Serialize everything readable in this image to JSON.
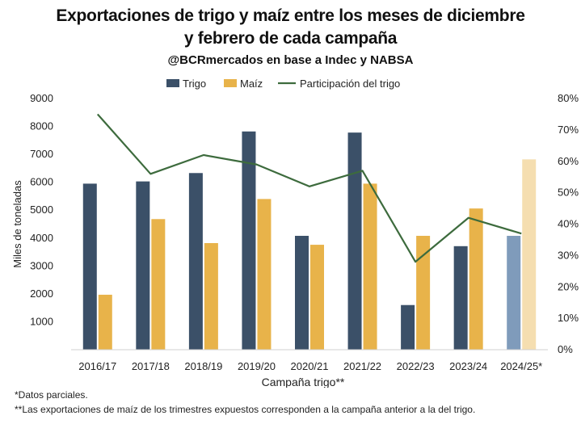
{
  "chart_data": {
    "type": "bar",
    "title": "Exportaciones de trigo y maíz entre los meses de diciembre",
    "title_line2": "y febrero de cada campaña",
    "subtitle": "@BCRmercados en base a Indec y NABSA",
    "xlabel": "Campaña trigo**",
    "ylabel": "Miles de toneladas",
    "ylim": [
      0,
      9000
    ],
    "y2lim": [
      0,
      80
    ],
    "yticks": [
      "1000",
      "2000",
      "3000",
      "4000",
      "5000",
      "6000",
      "7000",
      "8000",
      "9000"
    ],
    "y2ticks": [
      "0%",
      "10%",
      "20%",
      "30%",
      "40%",
      "50%",
      "60%",
      "70%",
      "80%"
    ],
    "categories": [
      "2016/17",
      "2017/18",
      "2018/19",
      "2019/20",
      "2020/21",
      "2021/22",
      "2022/23",
      "2023/24",
      "2024/25*"
    ],
    "series": [
      {
        "name": "Trigo",
        "type": "bar",
        "axis": "left",
        "color": "#3b5068",
        "partial_color": "#7f9bbb",
        "values": [
          5950,
          6030,
          6330,
          7820,
          4080,
          7780,
          1600,
          3710,
          4080
        ]
      },
      {
        "name": "Maíz",
        "type": "bar",
        "axis": "left",
        "color": "#e8b34a",
        "partial_color": "#f5deb0",
        "values": [
          1970,
          4680,
          3820,
          5400,
          3760,
          5950,
          4080,
          5060,
          6820
        ]
      },
      {
        "name": "Participación del trigo",
        "type": "line",
        "axis": "right",
        "color": "#3d6b3d",
        "values": [
          75,
          56,
          62,
          59,
          52,
          57,
          28,
          42,
          37
        ]
      }
    ],
    "partial_index": 8,
    "legend": "top-center",
    "grid": false
  },
  "notes": {
    "n1": "*Datos parciales.",
    "n2": "**Las exportaciones de maíz de los trimestres expuestos corresponden a la campaña anterior a la del trigo."
  }
}
